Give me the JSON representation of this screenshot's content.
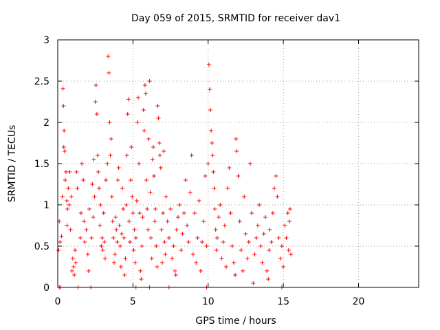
{
  "chart_data": {
    "type": "scatter",
    "title": "Day 059 of 2015, SRMTID for receiver dav1",
    "xlabel": "GPS time / hours",
    "ylabel": "SRMTID / TECUs",
    "xlim": [
      0,
      24
    ],
    "ylim": [
      0,
      3
    ],
    "xticks": [
      0,
      5,
      10,
      15,
      20
    ],
    "xtick_labels": [
      "0",
      "5",
      "10",
      "15",
      "20"
    ],
    "yticks": [
      0,
      0.5,
      1,
      1.5,
      2,
      2.5,
      3
    ],
    "ytick_labels": [
      "0",
      "0.5",
      "1",
      "1.5",
      "2",
      "2.5",
      "3"
    ],
    "grid": true,
    "marker": "+",
    "color": "#ff0000",
    "series": [
      {
        "name": "SRMTID",
        "points": [
          [
            0.05,
            0.45
          ],
          [
            0.1,
            0.8
          ],
          [
            0.15,
            0.55
          ],
          [
            0.2,
            0.0
          ],
          [
            0.25,
            0.62
          ],
          [
            0.3,
            1.1
          ],
          [
            0.35,
            2.41
          ],
          [
            0.38,
            2.2
          ],
          [
            0.4,
            1.7
          ],
          [
            0.42,
            1.9
          ],
          [
            0.45,
            1.65
          ],
          [
            0.5,
            1.3
          ],
          [
            0.55,
            1.4
          ],
          [
            0.6,
            1.05
          ],
          [
            0.62,
            0.75
          ],
          [
            0.65,
            0.95
          ],
          [
            0.7,
            1.2
          ],
          [
            0.75,
            1.0
          ],
          [
            0.8,
            1.4
          ],
          [
            0.85,
            0.7
          ],
          [
            0.9,
            1.1
          ],
          [
            0.95,
            0.2
          ],
          [
            1.0,
            0.35
          ],
          [
            1.05,
            0.25
          ],
          [
            1.1,
            0.15
          ],
          [
            1.15,
            0.45
          ],
          [
            1.2,
            0.3
          ],
          [
            1.25,
            1.4
          ],
          [
            1.3,
            1.2
          ],
          [
            1.35,
            0.0
          ],
          [
            1.5,
            0.6
          ],
          [
            1.55,
            0.9
          ],
          [
            1.6,
            1.5
          ],
          [
            1.7,
            1.3
          ],
          [
            1.75,
            0.8
          ],
          [
            1.8,
            0.55
          ],
          [
            1.9,
            0.7
          ],
          [
            2.0,
            0.4
          ],
          [
            2.05,
            0.2
          ],
          [
            2.1,
            0.95
          ],
          [
            2.2,
            0.0
          ],
          [
            2.25,
            0.6
          ],
          [
            2.3,
            1.25
          ],
          [
            2.35,
            0.85
          ],
          [
            2.4,
            1.55
          ],
          [
            2.45,
            1.1
          ],
          [
            2.5,
            2.25
          ],
          [
            2.55,
            2.45
          ],
          [
            2.6,
            2.1
          ],
          [
            2.65,
            1.6
          ],
          [
            2.7,
            1.4
          ],
          [
            2.75,
            1.2
          ],
          [
            2.8,
            0.75
          ],
          [
            2.85,
            1.0
          ],
          [
            2.9,
            0.5
          ],
          [
            2.95,
            0.6
          ],
          [
            3.0,
            0.45
          ],
          [
            3.05,
            0.9
          ],
          [
            3.1,
            0.55
          ],
          [
            3.15,
            0.35
          ],
          [
            3.2,
            1.3
          ],
          [
            3.3,
            1.5
          ],
          [
            3.35,
            2.8
          ],
          [
            3.4,
            2.6
          ],
          [
            3.45,
            2.0
          ],
          [
            3.5,
            1.6
          ],
          [
            3.55,
            1.8
          ],
          [
            3.6,
            1.1
          ],
          [
            3.65,
            0.8
          ],
          [
            3.7,
            0.6
          ],
          [
            3.75,
            0.3
          ],
          [
            3.8,
            0.4
          ],
          [
            3.85,
            0.85
          ],
          [
            3.9,
            0.7
          ],
          [
            3.95,
            0.55
          ],
          [
            4.0,
            1.3
          ],
          [
            4.05,
            1.45
          ],
          [
            4.1,
            0.75
          ],
          [
            4.15,
            0.5
          ],
          [
            4.2,
            0.25
          ],
          [
            4.25,
            0.65
          ],
          [
            4.3,
            1.2
          ],
          [
            4.35,
            0.95
          ],
          [
            4.4,
            0.6
          ],
          [
            4.45,
            0.15
          ],
          [
            4.5,
            0.35
          ],
          [
            4.55,
            1.0
          ],
          [
            4.6,
            1.6
          ],
          [
            4.65,
            2.1
          ],
          [
            4.7,
            2.28
          ],
          [
            4.75,
            0.8
          ],
          [
            4.8,
            0.55
          ],
          [
            4.85,
            1.3
          ],
          [
            4.9,
            1.7
          ],
          [
            4.95,
            1.1
          ],
          [
            5.0,
            0.9
          ],
          [
            5.05,
            0.45
          ],
          [
            5.1,
            0.7
          ],
          [
            5.15,
            0.3
          ],
          [
            5.2,
            0.6
          ],
          [
            5.25,
            1.05
          ],
          [
            5.3,
            2.0
          ],
          [
            5.35,
            2.3
          ],
          [
            5.4,
            1.5
          ],
          [
            5.45,
            0.9
          ],
          [
            5.5,
            0.2
          ],
          [
            5.55,
            0.1
          ],
          [
            5.6,
            0.5
          ],
          [
            5.65,
            0.85
          ],
          [
            5.7,
            2.15
          ],
          [
            5.75,
            1.9
          ],
          [
            5.8,
            2.45
          ],
          [
            5.85,
            2.35
          ],
          [
            5.9,
            1.3
          ],
          [
            5.95,
            0.95
          ],
          [
            6.0,
            0.7
          ],
          [
            6.05,
            1.8
          ],
          [
            6.1,
            2.5
          ],
          [
            6.15,
            1.15
          ],
          [
            6.2,
            0.6
          ],
          [
            6.25,
            0.35
          ],
          [
            6.3,
            1.55
          ],
          [
            6.35,
            1.7
          ],
          [
            6.4,
            1.35
          ],
          [
            6.45,
            0.8
          ],
          [
            6.5,
            0.95
          ],
          [
            6.55,
            0.5
          ],
          [
            6.6,
            0.25
          ],
          [
            6.65,
            2.2
          ],
          [
            6.7,
            2.05
          ],
          [
            6.75,
            1.75
          ],
          [
            6.8,
            1.6
          ],
          [
            6.85,
            1.45
          ],
          [
            6.9,
            0.7
          ],
          [
            6.95,
            0.3
          ],
          [
            7.0,
            0.9
          ],
          [
            7.05,
            1.65
          ],
          [
            7.1,
            0.55
          ],
          [
            7.15,
            0.4
          ],
          [
            7.2,
            1.1
          ],
          [
            7.3,
            0.8
          ],
          [
            7.4,
            0.6
          ],
          [
            7.5,
            0.95
          ],
          [
            7.6,
            0.35
          ],
          [
            7.7,
            0.5
          ],
          [
            7.8,
            0.2
          ],
          [
            7.85,
            0.15
          ],
          [
            7.9,
            0.7
          ],
          [
            8.0,
            0.85
          ],
          [
            8.1,
            1.0
          ],
          [
            8.2,
            0.45
          ],
          [
            8.3,
            0.65
          ],
          [
            8.4,
            0.9
          ],
          [
            8.5,
            1.3
          ],
          [
            8.6,
            0.75
          ],
          [
            8.7,
            0.55
          ],
          [
            8.8,
            1.15
          ],
          [
            8.9,
            1.6
          ],
          [
            9.0,
            0.4
          ],
          [
            9.1,
            0.9
          ],
          [
            9.2,
            0.3
          ],
          [
            9.3,
            0.6
          ],
          [
            9.4,
            1.05
          ],
          [
            9.5,
            0.2
          ],
          [
            9.6,
            0.55
          ],
          [
            9.7,
            0.8
          ],
          [
            9.8,
            1.35
          ],
          [
            9.9,
            0.5
          ],
          [
            10.0,
            1.5
          ],
          [
            10.05,
            2.7
          ],
          [
            10.1,
            2.4
          ],
          [
            10.15,
            2.15
          ],
          [
            10.2,
            1.9
          ],
          [
            10.25,
            1.75
          ],
          [
            10.3,
            1.6
          ],
          [
            10.35,
            1.4
          ],
          [
            10.4,
            1.2
          ],
          [
            10.45,
            0.95
          ],
          [
            10.5,
            0.7
          ],
          [
            10.55,
            0.45
          ],
          [
            10.6,
            0.6
          ],
          [
            10.7,
            0.85
          ],
          [
            10.8,
            1.0
          ],
          [
            10.9,
            0.35
          ],
          [
            11.0,
            0.55
          ],
          [
            11.1,
            0.75
          ],
          [
            11.2,
            0.25
          ],
          [
            11.3,
            1.2
          ],
          [
            11.4,
            1.45
          ],
          [
            11.5,
            0.9
          ],
          [
            11.6,
            0.5
          ],
          [
            11.7,
            0.3
          ],
          [
            11.8,
            0.15
          ],
          [
            11.85,
            1.8
          ],
          [
            11.9,
            1.65
          ],
          [
            12.0,
            1.35
          ],
          [
            12.1,
            0.8
          ],
          [
            12.2,
            0.45
          ],
          [
            12.3,
            0.2
          ],
          [
            12.4,
            1.1
          ],
          [
            12.5,
            0.65
          ],
          [
            12.6,
            0.35
          ],
          [
            12.7,
            0.55
          ],
          [
            12.8,
            1.5
          ],
          [
            12.9,
            0.9
          ],
          [
            13.0,
            0.05
          ],
          [
            13.1,
            0.4
          ],
          [
            13.2,
            0.6
          ],
          [
            13.3,
            0.75
          ],
          [
            13.4,
            1.0
          ],
          [
            13.5,
            0.5
          ],
          [
            13.6,
            0.3
          ],
          [
            13.7,
            0.65
          ],
          [
            13.8,
            0.85
          ],
          [
            13.9,
            0.2
          ],
          [
            14.0,
            0.1
          ],
          [
            14.05,
            0.45
          ],
          [
            14.1,
            0.7
          ],
          [
            14.2,
            0.55
          ],
          [
            14.3,
            0.9
          ],
          [
            14.4,
            1.2
          ],
          [
            14.5,
            1.35
          ],
          [
            14.6,
            1.1
          ],
          [
            14.7,
            0.6
          ],
          [
            14.8,
            0.35
          ],
          [
            14.9,
            0.5
          ],
          [
            15.0,
            0.25
          ],
          [
            15.1,
            0.75
          ],
          [
            15.2,
            0.6
          ],
          [
            15.3,
            0.9
          ],
          [
            15.35,
            0.45
          ],
          [
            15.4,
            0.8
          ],
          [
            15.45,
            0.95
          ],
          [
            15.5,
            0.4
          ],
          [
            0.1,
            0.0
          ],
          [
            5.2,
            0.0
          ],
          [
            6.1,
            0.0
          ],
          [
            7.4,
            0.0
          ],
          [
            9.9,
            0.0
          ],
          [
            14.9,
            0.0
          ]
        ]
      }
    ]
  }
}
